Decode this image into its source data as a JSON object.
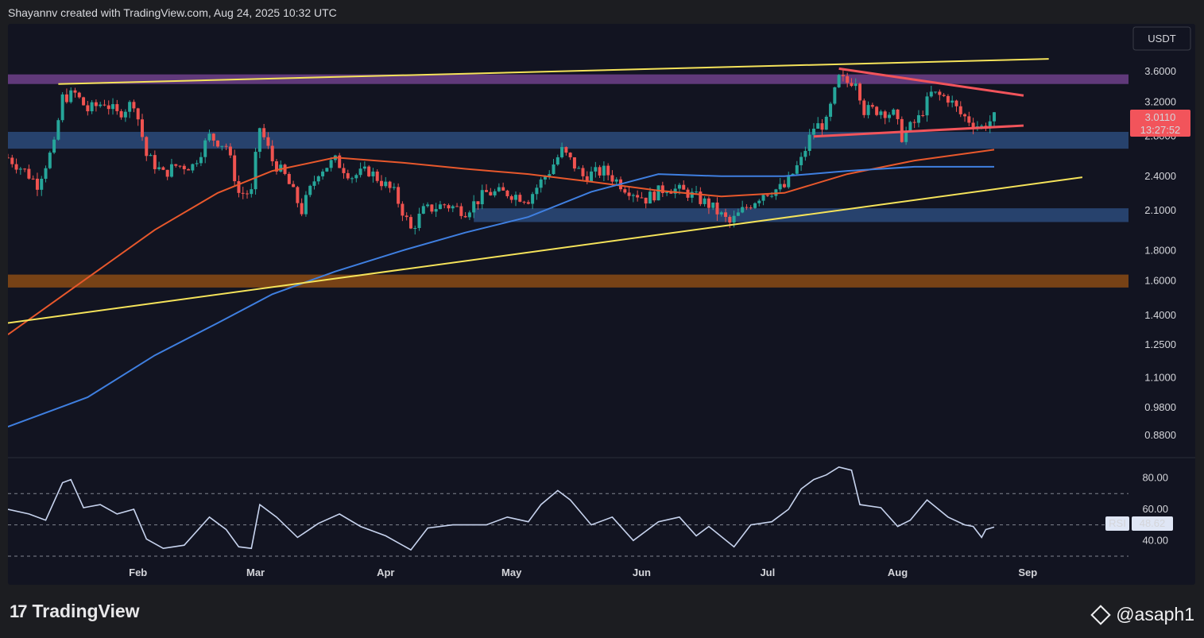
{
  "header": {
    "text": "Shayannv created with TradingView.com, Aug 24, 2025 10:32 UTC"
  },
  "currency_button": "USDT",
  "footer": {
    "logo_mark": "17",
    "logo_text": "TradingView",
    "watermark": "@asaph1"
  },
  "colors": {
    "background": "#121421",
    "up": "#26a69a",
    "down": "#ef5350",
    "ma_fast": "#e8582c",
    "ma_slow": "#3f7fe0",
    "trendline": "#f5e35a",
    "triangle": "#f2545b",
    "resistance_zone": "#6e3f8a",
    "support_zone": "#2c4a7a",
    "demand_zone": "#8a4a14",
    "rsi_line": "#c7d3ee"
  },
  "chart_data": [
    {
      "type": "candlestick",
      "title": "",
      "ylabel": "USDT",
      "y_scale": "log",
      "ylim": [
        0.82,
        4.0
      ],
      "y_ticks": [
        "3.6000",
        "3.2000",
        "2.8000",
        "2.4000",
        "2.1000",
        "1.8000",
        "1.6000",
        "1.4000",
        "1.2500",
        "1.1000",
        "0.9800",
        "0.8800"
      ],
      "x_ticks": [
        {
          "label": "Feb",
          "date": "2025-02-01"
        },
        {
          "label": "Mar",
          "date": "2025-03-01"
        },
        {
          "label": "Apr",
          "date": "2025-04-01"
        },
        {
          "label": "May",
          "date": "2025-05-01"
        },
        {
          "label": "Jun",
          "date": "2025-06-01"
        },
        {
          "label": "Jul",
          "date": "2025-07-01"
        },
        {
          "label": "Aug",
          "date": "2025-08-01"
        },
        {
          "label": "Sep",
          "date": "2025-09-01"
        }
      ],
      "xlim": [
        "2025-01-01",
        "2025-09-25"
      ],
      "price_label": {
        "value": "3.0110",
        "countdown": "13:27:52"
      },
      "close_path": [
        [
          "2025-01-01",
          2.58
        ],
        [
          "2025-01-05",
          2.45
        ],
        [
          "2025-01-08",
          2.33
        ],
        [
          "2025-01-12",
          2.7
        ],
        [
          "2025-01-14",
          3.25
        ],
        [
          "2025-01-17",
          3.3
        ],
        [
          "2025-01-20",
          3.1
        ],
        [
          "2025-01-24",
          3.2
        ],
        [
          "2025-01-27",
          3.05
        ],
        [
          "2025-01-31",
          3.2
        ],
        [
          "2025-02-03",
          2.6
        ],
        [
          "2025-02-07",
          2.42
        ],
        [
          "2025-02-10",
          2.5
        ],
        [
          "2025-02-14",
          2.5
        ],
        [
          "2025-02-18",
          2.8
        ],
        [
          "2025-02-22",
          2.7
        ],
        [
          "2025-02-25",
          2.25
        ],
        [
          "2025-02-28",
          2.25
        ],
        [
          "2025-03-02",
          2.9
        ],
        [
          "2025-03-05",
          2.55
        ],
        [
          "2025-03-08",
          2.4
        ],
        [
          "2025-03-12",
          2.1
        ],
        [
          "2025-03-16",
          2.45
        ],
        [
          "2025-03-20",
          2.55
        ],
        [
          "2025-03-24",
          2.4
        ],
        [
          "2025-03-28",
          2.45
        ],
        [
          "2025-04-03",
          2.25
        ],
        [
          "2025-04-07",
          1.95
        ],
        [
          "2025-04-10",
          2.1
        ],
        [
          "2025-04-15",
          2.15
        ],
        [
          "2025-04-20",
          2.1
        ],
        [
          "2025-04-25",
          2.25
        ],
        [
          "2025-04-30",
          2.25
        ],
        [
          "2025-05-05",
          2.2
        ],
        [
          "2025-05-10",
          2.45
        ],
        [
          "2025-05-13",
          2.65
        ],
        [
          "2025-05-18",
          2.4
        ],
        [
          "2025-05-23",
          2.45
        ],
        [
          "2025-05-28",
          2.3
        ],
        [
          "2025-06-02",
          2.2
        ],
        [
          "2025-06-07",
          2.3
        ],
        [
          "2025-06-12",
          2.25
        ],
        [
          "2025-06-17",
          2.15
        ],
        [
          "2025-06-22",
          2.0
        ],
        [
          "2025-06-25",
          2.1
        ],
        [
          "2025-06-30",
          2.25
        ],
        [
          "2025-07-05",
          2.3
        ],
        [
          "2025-07-09",
          2.55
        ],
        [
          "2025-07-12",
          2.9
        ],
        [
          "2025-07-15",
          2.95
        ],
        [
          "2025-07-18",
          3.5
        ],
        [
          "2025-07-20",
          3.45
        ],
        [
          "2025-07-22",
          3.5
        ],
        [
          "2025-07-24",
          3.1
        ],
        [
          "2025-07-28",
          3.1
        ],
        [
          "2025-07-31",
          3.05
        ],
        [
          "2025-08-02",
          2.8
        ],
        [
          "2025-08-06",
          3.0
        ],
        [
          "2025-08-09",
          3.3
        ],
        [
          "2025-08-13",
          3.25
        ],
        [
          "2025-08-16",
          3.05
        ],
        [
          "2025-08-19",
          2.95
        ],
        [
          "2025-08-21",
          2.9
        ],
        [
          "2025-08-24",
          3.01
        ]
      ],
      "series": [
        {
          "kind": "moving_average",
          "color": "#e8582c",
          "points": [
            [
              "2025-01-01",
              1.3
            ],
            [
              "2025-01-20",
              1.62
            ],
            [
              "2025-02-05",
              1.95
            ],
            [
              "2025-02-20",
              2.25
            ],
            [
              "2025-03-05",
              2.45
            ],
            [
              "2025-03-20",
              2.58
            ],
            [
              "2025-04-05",
              2.53
            ],
            [
              "2025-04-20",
              2.47
            ],
            [
              "2025-05-05",
              2.42
            ],
            [
              "2025-05-20",
              2.35
            ],
            [
              "2025-06-05",
              2.27
            ],
            [
              "2025-06-20",
              2.22
            ],
            [
              "2025-07-05",
              2.25
            ],
            [
              "2025-07-20",
              2.42
            ],
            [
              "2025-08-05",
              2.55
            ],
            [
              "2025-08-24",
              2.66
            ]
          ]
        },
        {
          "kind": "moving_average",
          "color": "#3f7fe0",
          "points": [
            [
              "2025-01-01",
              0.91
            ],
            [
              "2025-01-20",
              1.02
            ],
            [
              "2025-02-05",
              1.2
            ],
            [
              "2025-02-20",
              1.36
            ],
            [
              "2025-03-05",
              1.52
            ],
            [
              "2025-03-20",
              1.66
            ],
            [
              "2025-04-05",
              1.8
            ],
            [
              "2025-04-20",
              1.93
            ],
            [
              "2025-05-05",
              2.05
            ],
            [
              "2025-05-20",
              2.26
            ],
            [
              "2025-06-05",
              2.42
            ],
            [
              "2025-06-20",
              2.4
            ],
            [
              "2025-07-05",
              2.4
            ],
            [
              "2025-07-20",
              2.45
            ],
            [
              "2025-08-05",
              2.49
            ],
            [
              "2025-08-24",
              2.49
            ]
          ]
        }
      ],
      "zones": [
        {
          "name": "resistance",
          "color": "#6e3f8a",
          "y_low": 3.43,
          "y_high": 3.56,
          "x_start": "2025-01-01"
        },
        {
          "name": "support",
          "color": "#2c4a7a",
          "y_low": 2.67,
          "y_high": 2.85,
          "x_start": "2025-01-01"
        },
        {
          "name": "support",
          "color": "#2c4a7a",
          "y_low": 2.01,
          "y_high": 2.12,
          "x_start": "2025-04-22"
        },
        {
          "name": "demand",
          "color": "#8a4a14",
          "y_low": 1.56,
          "y_high": 1.64,
          "x_start": "2025-01-01"
        }
      ],
      "lines": [
        {
          "kind": "channel_top",
          "color": "#f5e35a",
          "points": [
            [
              "2025-01-13",
              3.43
            ],
            [
              "2025-09-06",
              3.78
            ]
          ]
        },
        {
          "kind": "channel_bottom",
          "color": "#f5e35a",
          "points": [
            [
              "2025-01-01",
              1.36
            ],
            [
              "2025-09-14",
              2.39
            ]
          ]
        },
        {
          "kind": "triangle_upper",
          "color": "#f2545b",
          "points": [
            [
              "2025-07-18",
              3.64
            ],
            [
              "2025-08-31",
              3.28
            ]
          ]
        },
        {
          "kind": "triangle_lower",
          "color": "#f2545b",
          "points": [
            [
              "2025-07-12",
              2.8
            ],
            [
              "2025-08-31",
              2.92
            ]
          ]
        }
      ]
    },
    {
      "type": "line",
      "title": "RSI",
      "ylim": [
        30,
        92
      ],
      "y_ticks": [
        "80.00",
        "60.00",
        "40.00"
      ],
      "levels": [
        70,
        50,
        30
      ],
      "current": {
        "label": "RSI",
        "value": "48.62"
      },
      "points": [
        [
          "2025-01-01",
          60
        ],
        [
          "2025-01-06",
          57
        ],
        [
          "2025-01-10",
          53
        ],
        [
          "2025-01-14",
          77
        ],
        [
          "2025-01-16",
          79
        ],
        [
          "2025-01-19",
          61
        ],
        [
          "2025-01-23",
          63
        ],
        [
          "2025-01-27",
          57
        ],
        [
          "2025-01-31",
          60
        ],
        [
          "2025-02-03",
          41
        ],
        [
          "2025-02-07",
          35
        ],
        [
          "2025-02-12",
          37
        ],
        [
          "2025-02-18",
          55
        ],
        [
          "2025-02-22",
          47
        ],
        [
          "2025-02-25",
          36
        ],
        [
          "2025-02-28",
          35
        ],
        [
          "2025-03-02",
          63
        ],
        [
          "2025-03-06",
          55
        ],
        [
          "2025-03-11",
          42
        ],
        [
          "2025-03-16",
          51
        ],
        [
          "2025-03-21",
          57
        ],
        [
          "2025-03-26",
          49
        ],
        [
          "2025-04-01",
          43
        ],
        [
          "2025-04-07",
          34
        ],
        [
          "2025-04-11",
          48
        ],
        [
          "2025-04-17",
          50
        ],
        [
          "2025-04-25",
          50
        ],
        [
          "2025-04-30",
          55
        ],
        [
          "2025-05-05",
          52
        ],
        [
          "2025-05-08",
          63
        ],
        [
          "2025-05-12",
          72
        ],
        [
          "2025-05-15",
          66
        ],
        [
          "2025-05-20",
          50
        ],
        [
          "2025-05-25",
          55
        ],
        [
          "2025-05-30",
          40
        ],
        [
          "2025-06-05",
          52
        ],
        [
          "2025-06-10",
          55
        ],
        [
          "2025-06-14",
          43
        ],
        [
          "2025-06-17",
          49
        ],
        [
          "2025-06-23",
          36
        ],
        [
          "2025-06-27",
          50
        ],
        [
          "2025-07-02",
          52
        ],
        [
          "2025-07-06",
          60
        ],
        [
          "2025-07-09",
          73
        ],
        [
          "2025-07-12",
          79
        ],
        [
          "2025-07-15",
          82
        ],
        [
          "2025-07-18",
          87
        ],
        [
          "2025-07-21",
          85
        ],
        [
          "2025-07-23",
          63
        ],
        [
          "2025-07-28",
          61
        ],
        [
          "2025-08-01",
          49
        ],
        [
          "2025-08-04",
          53
        ],
        [
          "2025-08-08",
          66
        ],
        [
          "2025-08-13",
          55
        ],
        [
          "2025-08-17",
          50
        ],
        [
          "2025-08-19",
          49
        ],
        [
          "2025-08-21",
          42
        ],
        [
          "2025-08-22",
          47
        ],
        [
          "2025-08-24",
          48.62
        ]
      ]
    }
  ]
}
